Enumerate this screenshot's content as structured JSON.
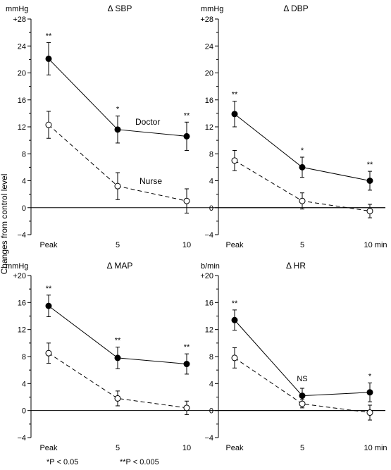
{
  "ylabel": "Changes from control level",
  "footnotes": [
    "*P < 0.05",
    "**P < 0.005"
  ],
  "chart_data": [
    {
      "type": "line",
      "title": "Δ SBP",
      "unit": "mmHg",
      "categories": [
        "Peak",
        "5",
        "10"
      ],
      "yticks": [
        "−4",
        "0",
        "4",
        "8",
        "12",
        "16",
        "20",
        "24",
        "+28"
      ],
      "ylim": [
        -4,
        28
      ],
      "series": [
        {
          "name": "Doctor",
          "values": [
            22.1,
            11.6,
            10.6
          ],
          "errors": [
            2.4,
            2.0,
            2.1
          ],
          "marker": "filled",
          "style": "solid"
        },
        {
          "name": "Nurse",
          "values": [
            12.3,
            3.2,
            1.0
          ],
          "errors": [
            2.0,
            2.0,
            1.8
          ],
          "marker": "open",
          "style": "dashed"
        }
      ],
      "annotations": [
        "**",
        "*",
        "**"
      ]
    },
    {
      "type": "line",
      "title": "Δ DBP",
      "unit": "mmHg",
      "categories": [
        "Peak",
        "5",
        "10 min"
      ],
      "yticks": [
        "−4",
        "0",
        "4",
        "8",
        "12",
        "16",
        "20",
        "24",
        "+28"
      ],
      "ylim": [
        -4,
        28
      ],
      "series": [
        {
          "values": [
            13.9,
            6.0,
            4.0
          ],
          "errors": [
            1.9,
            1.5,
            1.4
          ],
          "marker": "filled",
          "style": "solid"
        },
        {
          "values": [
            7.0,
            1.0,
            -0.5
          ],
          "errors": [
            1.5,
            1.2,
            1.0
          ],
          "marker": "open",
          "style": "dashed"
        }
      ],
      "annotations": [
        "**",
        "*",
        "**"
      ]
    },
    {
      "type": "line",
      "title": "Δ MAP",
      "unit": "mmHg",
      "categories": [
        "Peak",
        "5",
        "10"
      ],
      "yticks": [
        "−4",
        "0",
        "4",
        "8",
        "12",
        "16",
        "+20"
      ],
      "ylim": [
        -4,
        20
      ],
      "series": [
        {
          "values": [
            15.5,
            7.8,
            6.9
          ],
          "errors": [
            1.6,
            1.6,
            1.5
          ],
          "marker": "filled",
          "style": "solid"
        },
        {
          "values": [
            8.5,
            1.8,
            0.4
          ],
          "errors": [
            1.5,
            1.1,
            1.0
          ],
          "marker": "open",
          "style": "dashed"
        }
      ],
      "annotations": [
        "**",
        "**",
        "**"
      ]
    },
    {
      "type": "line",
      "title": "Δ HR",
      "unit": "b/min",
      "categories": [
        "Peak",
        "5",
        "10 min"
      ],
      "yticks": [
        "−4",
        "0",
        "4",
        "8",
        "12",
        "16",
        "+20"
      ],
      "ylim": [
        -4,
        20
      ],
      "series": [
        {
          "values": [
            13.4,
            2.2,
            2.7
          ],
          "errors": [
            1.5,
            1.1,
            1.4
          ],
          "marker": "filled",
          "style": "solid"
        },
        {
          "values": [
            7.8,
            1.0,
            -0.3
          ],
          "errors": [
            1.5,
            0.6,
            1.1
          ],
          "marker": "open",
          "style": "dashed"
        }
      ],
      "annotations": [
        "**",
        "NS",
        "*"
      ]
    }
  ]
}
